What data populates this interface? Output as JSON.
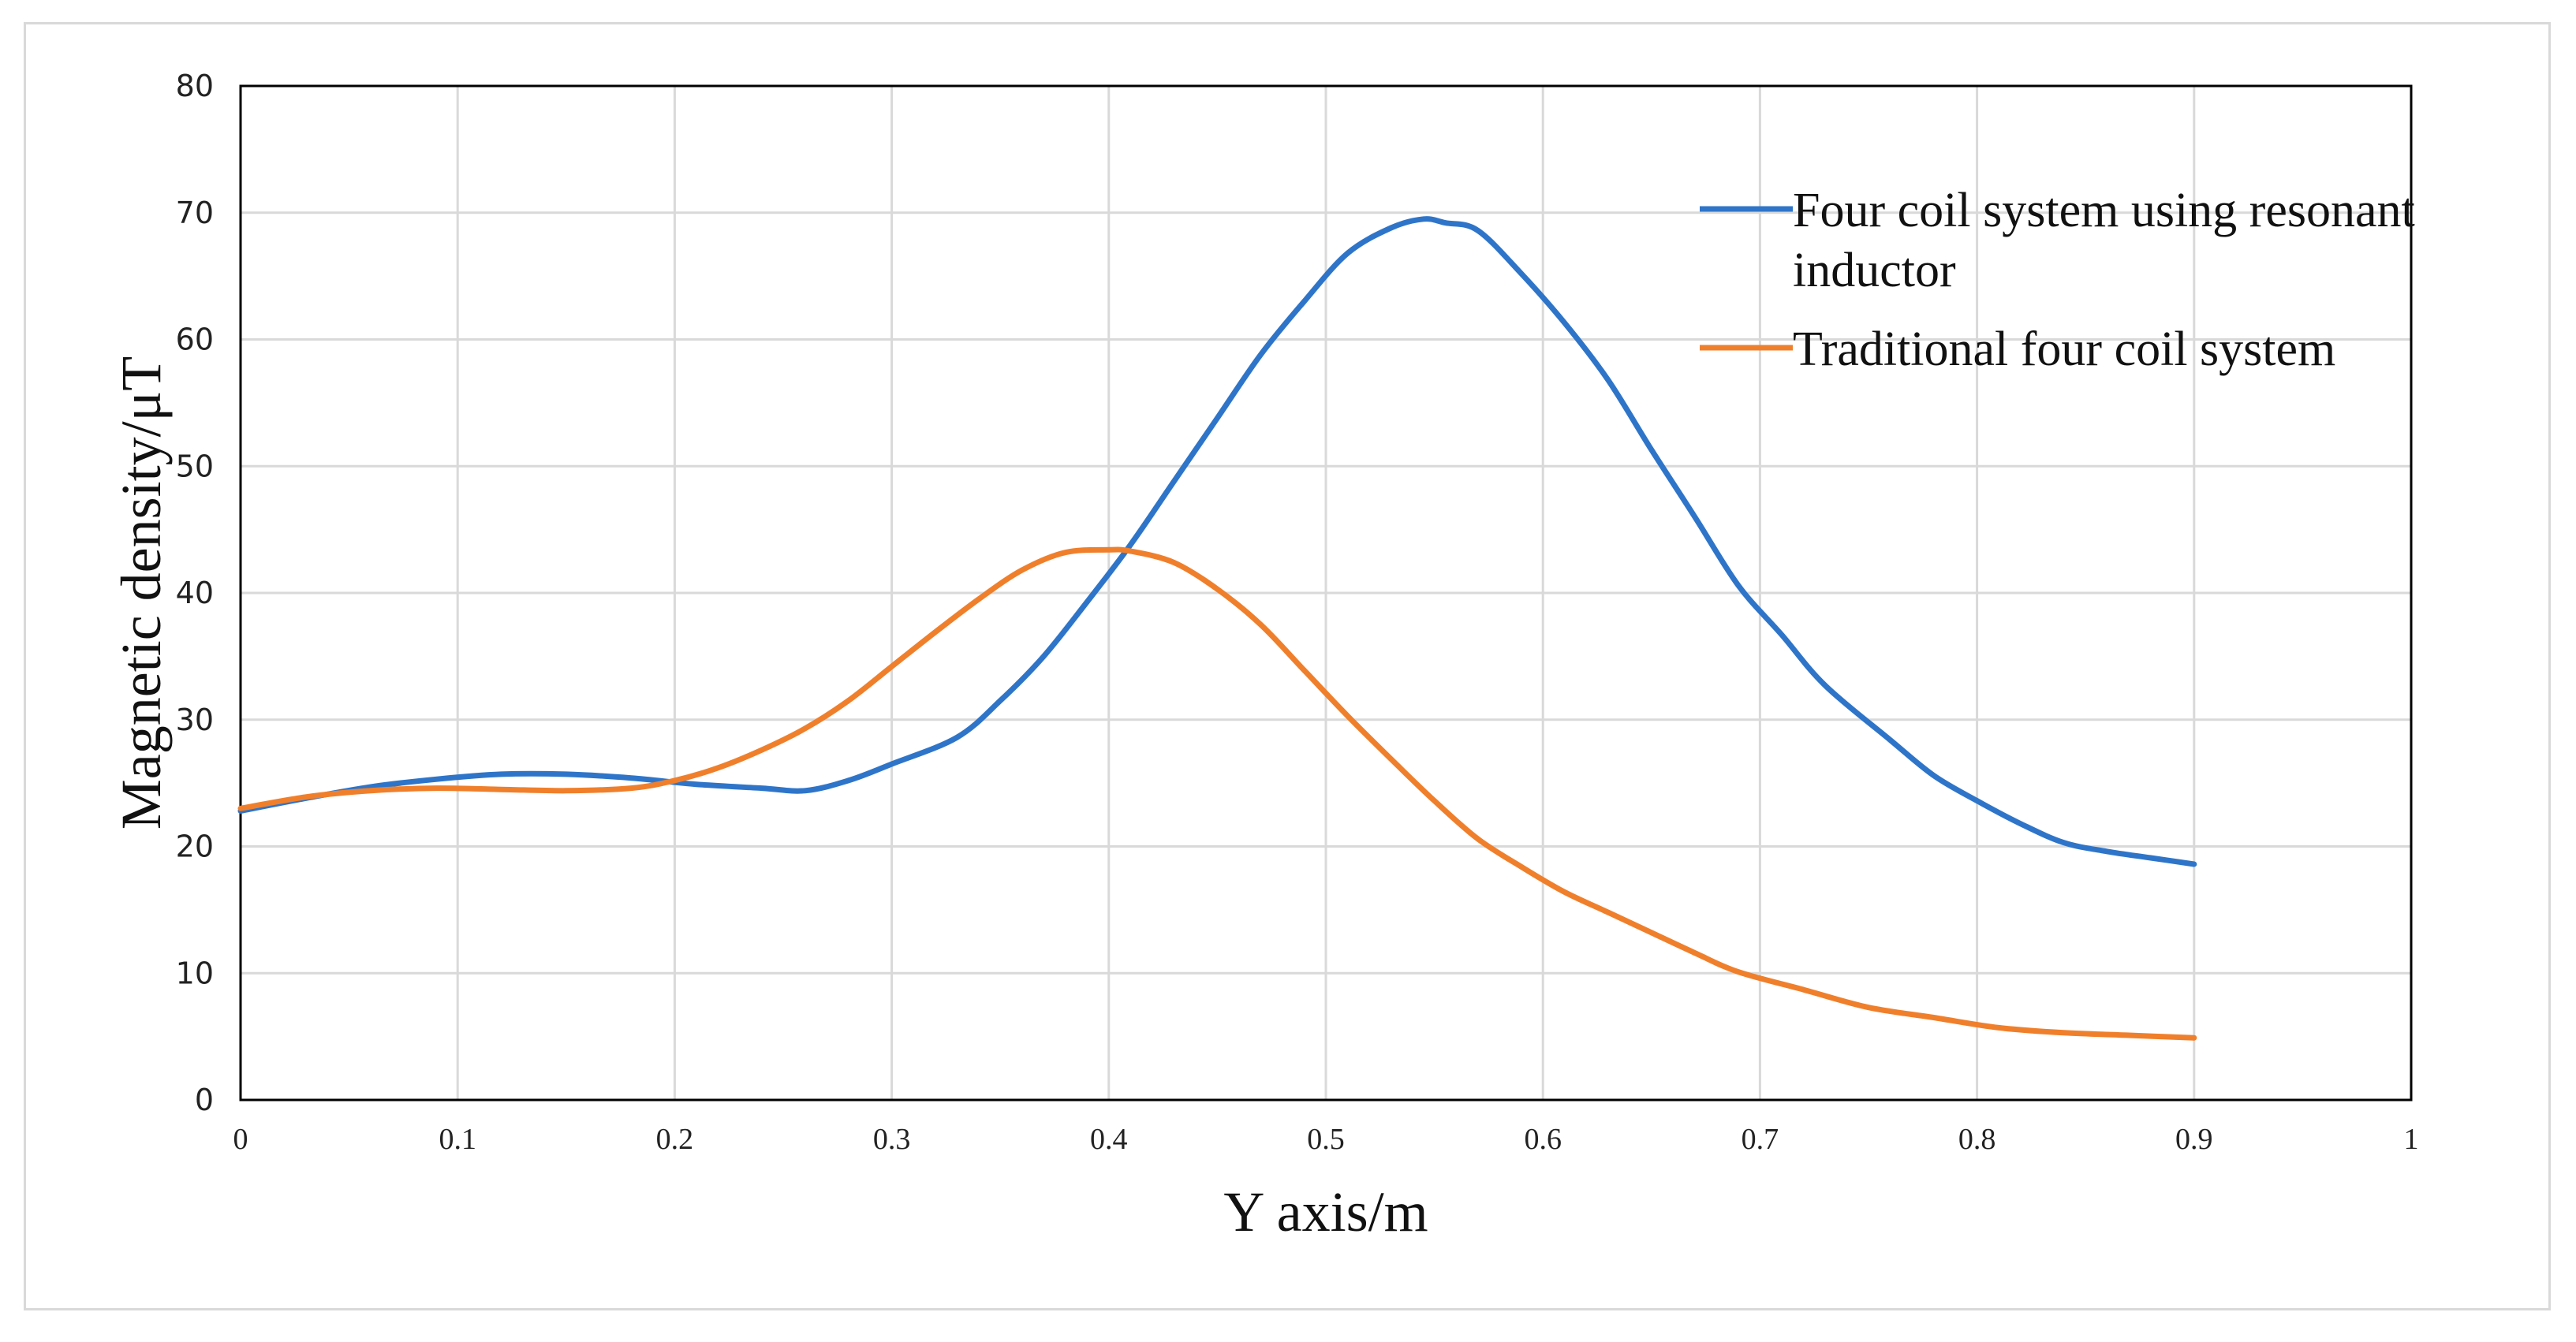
{
  "chart_data": {
    "type": "line",
    "title": "",
    "xlabel": "Y axis/m",
    "ylabel": "Magnetic  density/μT",
    "xlim": [
      0,
      1
    ],
    "ylim": [
      0,
      80
    ],
    "xticks": [
      "0",
      "0.1",
      "0.2",
      "0.3",
      "0.4",
      "0.5",
      "0.6",
      "0.7",
      "0.8",
      "0.9",
      "1"
    ],
    "yticks": [
      "0",
      "10",
      "20",
      "30",
      "40",
      "50",
      "60",
      "70",
      "80"
    ],
    "grid": true,
    "legend_position": "top-right",
    "series": [
      {
        "name_lines": [
          "Four coil system using resonant",
          "inductor"
        ],
        "color": "#2e75c9",
        "x": [
          0,
          0.03,
          0.06,
          0.09,
          0.12,
          0.15,
          0.18,
          0.21,
          0.24,
          0.26,
          0.28,
          0.3,
          0.33,
          0.35,
          0.37,
          0.39,
          0.41,
          0.43,
          0.45,
          0.47,
          0.49,
          0.51,
          0.53,
          0.545,
          0.555,
          0.57,
          0.59,
          0.61,
          0.63,
          0.65,
          0.67,
          0.69,
          0.71,
          0.73,
          0.76,
          0.78,
          0.8,
          0.82,
          0.84,
          0.86,
          0.88,
          0.9
        ],
        "y": [
          22.8,
          23.8,
          24.7,
          25.3,
          25.7,
          25.7,
          25.4,
          24.9,
          24.6,
          24.4,
          25.2,
          26.5,
          28.6,
          31.5,
          35,
          39.3,
          43.8,
          48.8,
          53.8,
          58.8,
          63,
          66.8,
          68.8,
          69.5,
          69.2,
          68.6,
          65.2,
          61.3,
          56.8,
          51.3,
          46,
          40.6,
          36.7,
          32.7,
          28.4,
          25.6,
          23.6,
          21.8,
          20.3,
          19.6,
          19.1,
          18.6
        ]
      },
      {
        "name_lines": [
          "Traditional four coil system"
        ],
        "color": "#f07f2b",
        "x": [
          0,
          0.03,
          0.06,
          0.09,
          0.12,
          0.15,
          0.18,
          0.2,
          0.22,
          0.24,
          0.26,
          0.28,
          0.3,
          0.32,
          0.34,
          0.36,
          0.38,
          0.4,
          0.41,
          0.43,
          0.45,
          0.47,
          0.49,
          0.51,
          0.53,
          0.55,
          0.57,
          0.59,
          0.61,
          0.63,
          0.65,
          0.67,
          0.69,
          0.72,
          0.75,
          0.78,
          0.81,
          0.84,
          0.87,
          0.9
        ],
        "y": [
          23,
          23.9,
          24.4,
          24.6,
          24.5,
          24.4,
          24.6,
          25.2,
          26.2,
          27.6,
          29.3,
          31.5,
          34.2,
          36.9,
          39.5,
          41.8,
          43.2,
          43.4,
          43.3,
          42.4,
          40.3,
          37.5,
          33.9,
          30.3,
          26.9,
          23.6,
          20.6,
          18.4,
          16.4,
          14.8,
          13.2,
          11.6,
          10.1,
          8.7,
          7.3,
          6.5,
          5.7,
          5.3,
          5.1,
          4.9
        ]
      }
    ]
  }
}
